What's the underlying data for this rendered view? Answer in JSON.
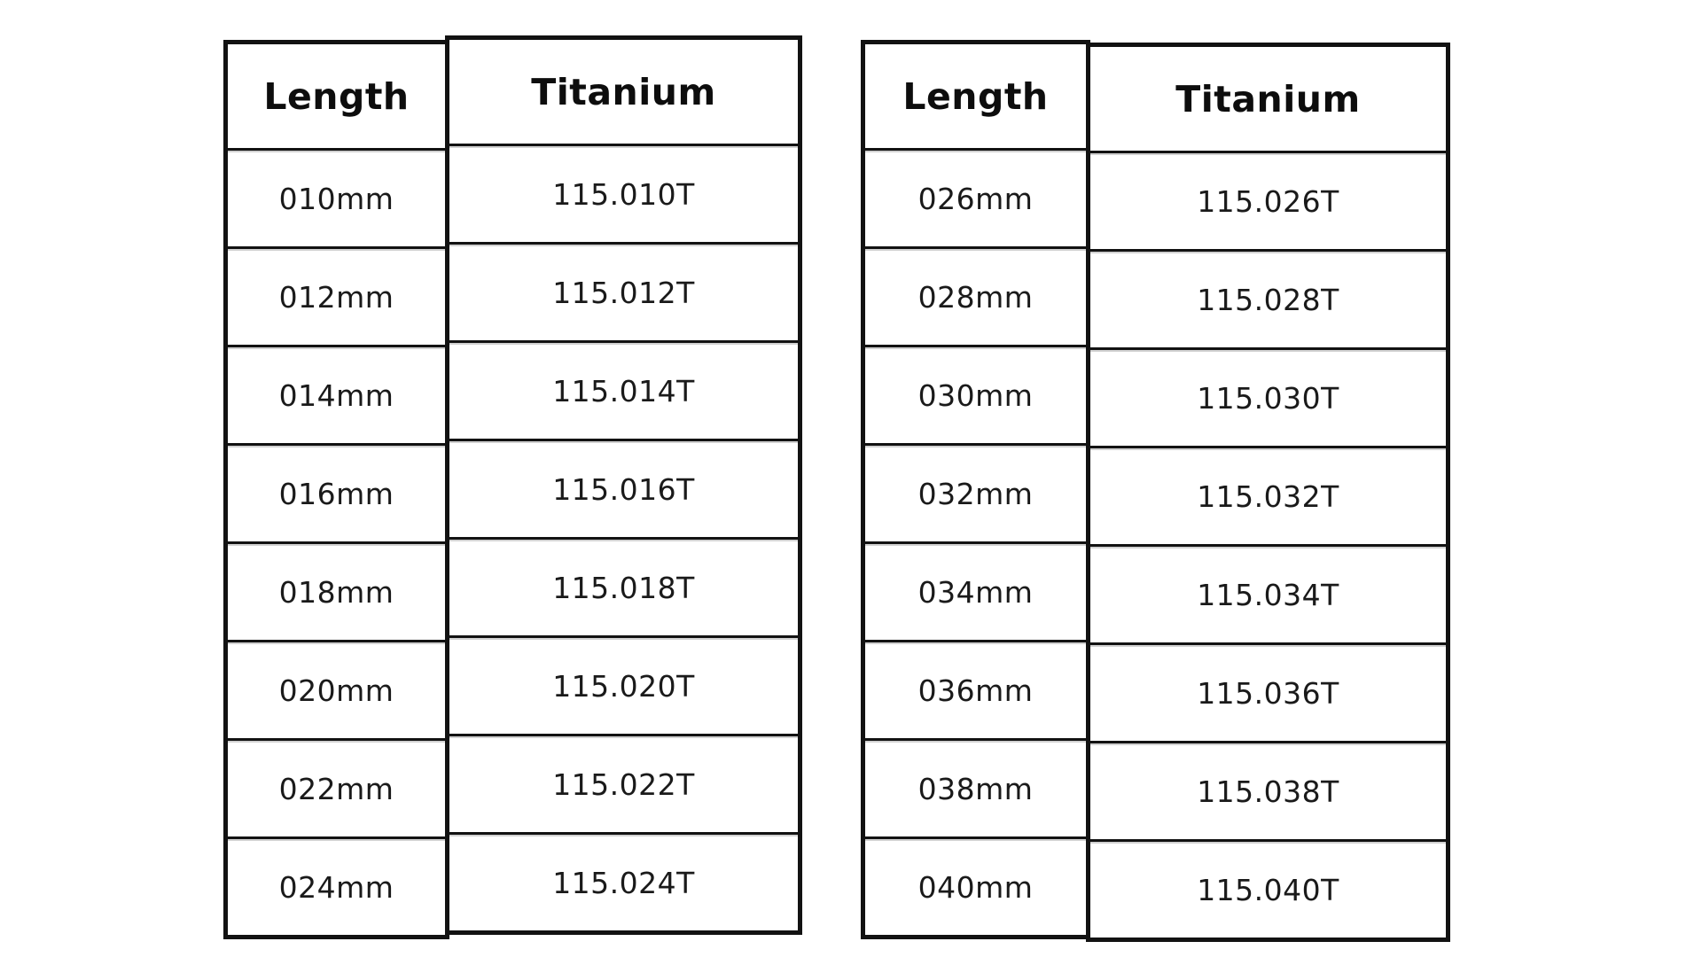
{
  "colors": {
    "border": "#121212",
    "text": "#1a1a1a",
    "background": "#ffffff"
  },
  "tables": [
    {
      "id": "left",
      "headers": {
        "length": "Length",
        "material": "Titanium"
      },
      "rows": [
        {
          "length": "010mm",
          "code": "115.010T"
        },
        {
          "length": "012mm",
          "code": "115.012T"
        },
        {
          "length": "014mm",
          "code": "115.014T"
        },
        {
          "length": "016mm",
          "code": "115.016T"
        },
        {
          "length": "018mm",
          "code": "115.018T"
        },
        {
          "length": "020mm",
          "code": "115.020T"
        },
        {
          "length": "022mm",
          "code": "115.022T"
        },
        {
          "length": "024mm",
          "code": "115.024T"
        }
      ]
    },
    {
      "id": "right",
      "headers": {
        "length": "Length",
        "material": "Titanium"
      },
      "rows": [
        {
          "length": "026mm",
          "code": "115.026T"
        },
        {
          "length": "028mm",
          "code": "115.028T"
        },
        {
          "length": "030mm",
          "code": "115.030T"
        },
        {
          "length": "032mm",
          "code": "115.032T"
        },
        {
          "length": "034mm",
          "code": "115.034T"
        },
        {
          "length": "036mm",
          "code": "115.036T"
        },
        {
          "length": "038mm",
          "code": "115.038T"
        },
        {
          "length": "040mm",
          "code": "115.040T"
        }
      ]
    }
  ]
}
